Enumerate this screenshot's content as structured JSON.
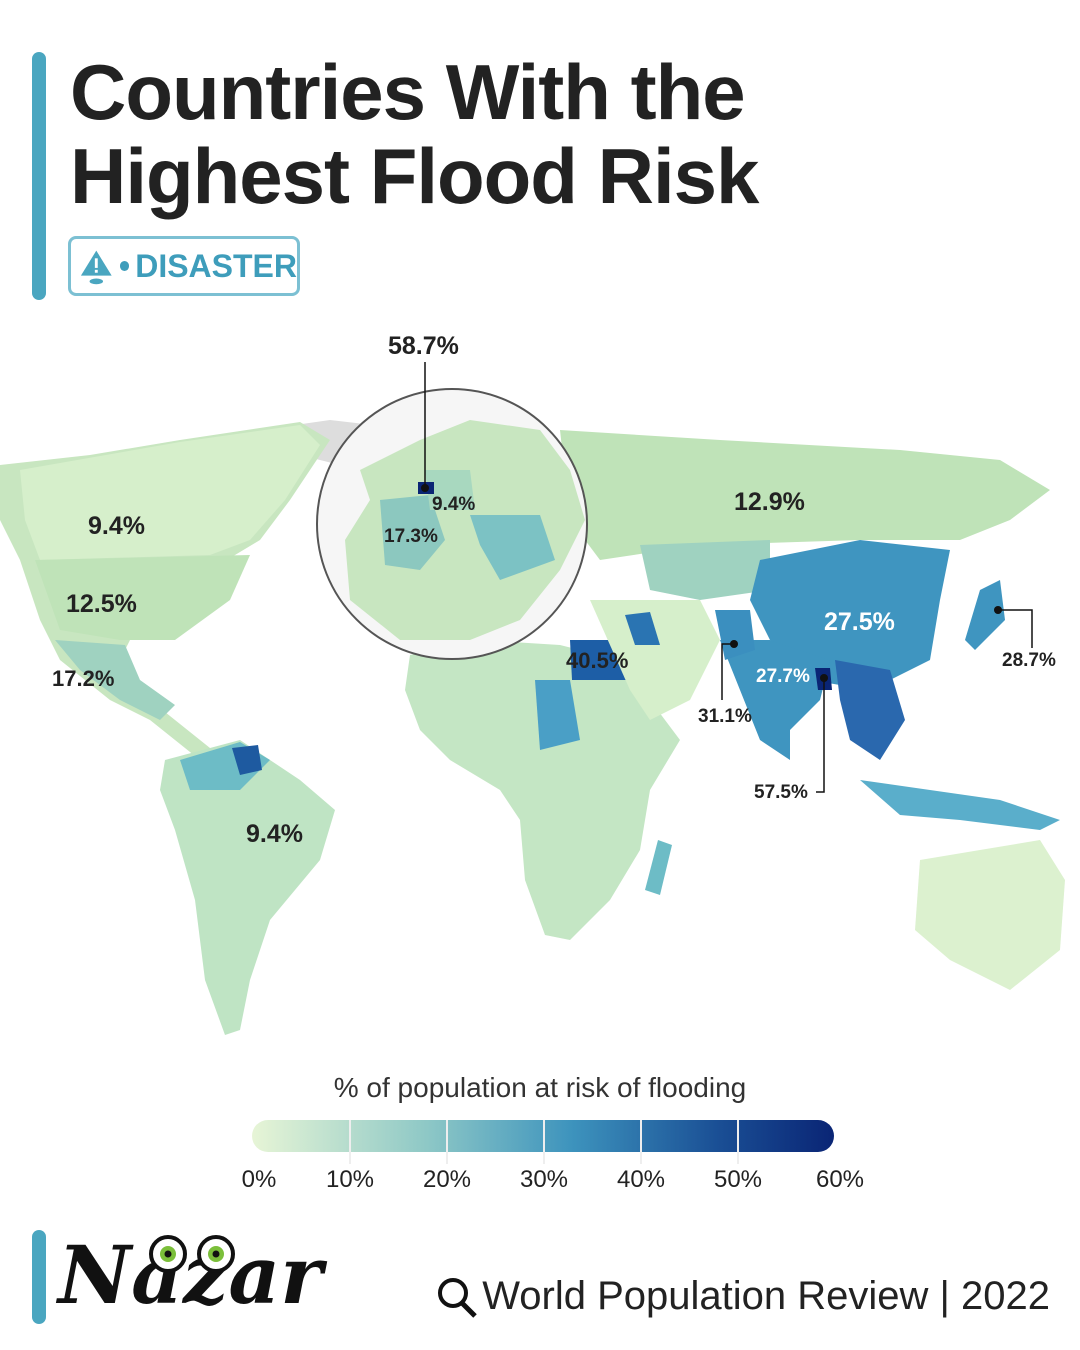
{
  "title_line1": "Countries With the",
  "title_line2": "Highest Flood Risk",
  "badge": {
    "label": "DISASTER",
    "icon": "warning-flood-icon"
  },
  "map": {
    "labels": {
      "netherlands": "58.7%",
      "germany": "9.4%",
      "france": "17.3%",
      "canada": "9.4%",
      "usa": "12.5%",
      "mexico": "17.2%",
      "brazil": "9.4%",
      "egypt": "40.5%",
      "russia": "12.9%",
      "china": "27.5%",
      "japan": "28.7%",
      "pakistan": "31.1%",
      "india": "27.7%",
      "bangladesh": "57.5%"
    }
  },
  "legend": {
    "title": "% of population at risk of flooding",
    "ticks": [
      "0%",
      "10%",
      "20%",
      "30%",
      "40%",
      "50%",
      "60%"
    ],
    "colors": [
      "#e7f5d6",
      "#8ec8c6",
      "#3d93bd",
      "#1a4f95",
      "#0a2575"
    ]
  },
  "footer": {
    "logo": "Nazar",
    "source": "World Population Review | 2022"
  }
}
